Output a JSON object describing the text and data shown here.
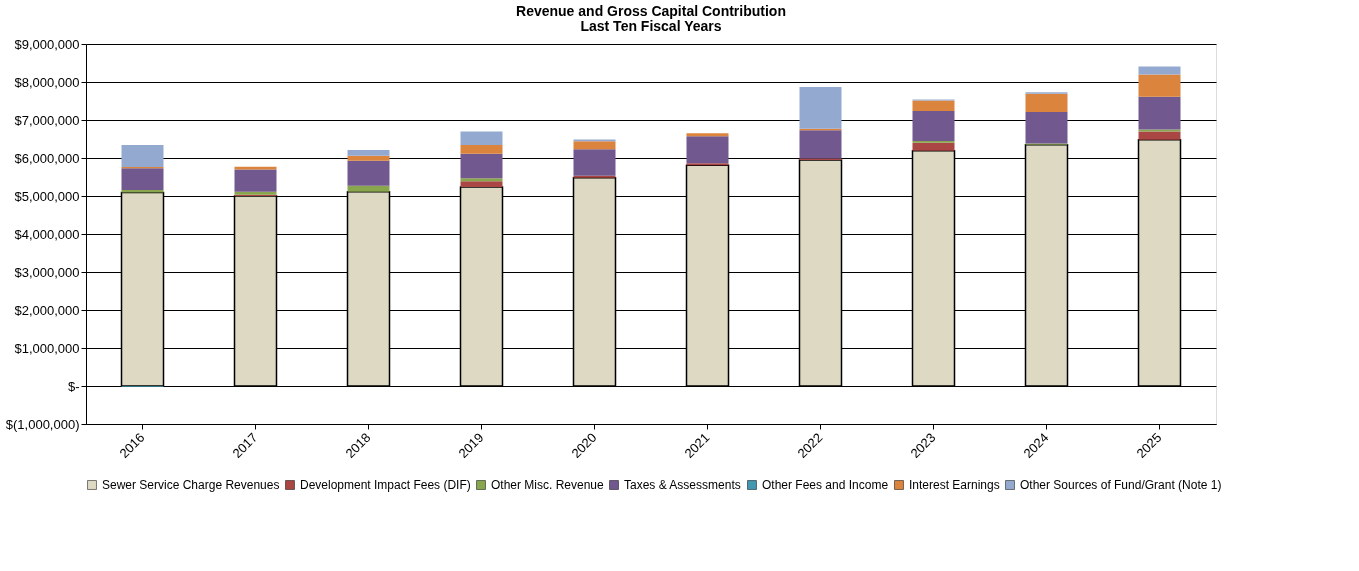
{
  "chart_data": {
    "type": "bar",
    "stacked": true,
    "title": "Revenue and Gross Capital Contribution",
    "subtitle": "Last Ten Fiscal Years",
    "categories": [
      "2016",
      "2017",
      "2018",
      "2019",
      "2020",
      "2021",
      "2022",
      "2023",
      "2024",
      "2025"
    ],
    "series": [
      {
        "name": "Sewer Service Charge Revenues",
        "color": "#ddd9c3",
        "values": [
          5090000,
          5000000,
          5110000,
          5240000,
          5480000,
          5810000,
          5950000,
          6190000,
          6350000,
          6480000
        ]
      },
      {
        "name": "Development Impact Fees (DIF)",
        "color": "#aa4643",
        "values": [
          null,
          30000,
          0,
          150000,
          50000,
          50000,
          40000,
          210000,
          0,
          220000
        ]
      },
      {
        "name": "Other Misc. Revenue",
        "color": "#89a54e",
        "values": [
          70000,
          80000,
          160000,
          80000,
          0,
          0,
          0,
          50000,
          30000,
          50000
        ]
      },
      {
        "name": "Taxes & Assessments",
        "color": "#71588f",
        "values": [
          570000,
          590000,
          660000,
          640000,
          700000,
          710000,
          740000,
          790000,
          830000,
          860000
        ]
      },
      {
        "name": "Other Fees and Income",
        "color": "#4198af",
        "values": [
          -20000,
          0,
          0,
          0,
          0,
          0,
          0,
          0,
          0,
          0
        ]
      },
      {
        "name": "Interest Earnings",
        "color": "#db843d",
        "values": [
          30000,
          70000,
          130000,
          230000,
          210000,
          80000,
          40000,
          270000,
          480000,
          590000
        ]
      },
      {
        "name": "Other Sources of Fund/Grant (Note 1)",
        "color": "#93a9cf",
        "values": [
          580000,
          0,
          150000,
          360000,
          50000,
          0,
          1100000,
          30000,
          40000,
          210000
        ]
      }
    ],
    "ylim": [
      -1000000,
      9000000
    ],
    "yticks": [
      {
        "value": -1000000,
        "label": "$(1,000,000)"
      },
      {
        "value": 0,
        "label": "$-"
      },
      {
        "value": 1000000,
        "label": "$1,000,000"
      },
      {
        "value": 2000000,
        "label": "$2,000,000"
      },
      {
        "value": 3000000,
        "label": "$3,000,000"
      },
      {
        "value": 4000000,
        "label": "$4,000,000"
      },
      {
        "value": 5000000,
        "label": "$5,000,000"
      },
      {
        "value": 6000000,
        "label": "$6,000,000"
      },
      {
        "value": 7000000,
        "label": "$7,000,000"
      },
      {
        "value": 8000000,
        "label": "$8,000,000"
      },
      {
        "value": 9000000,
        "label": "$9,000,000"
      }
    ],
    "grid": "y",
    "legend": "bottom"
  }
}
